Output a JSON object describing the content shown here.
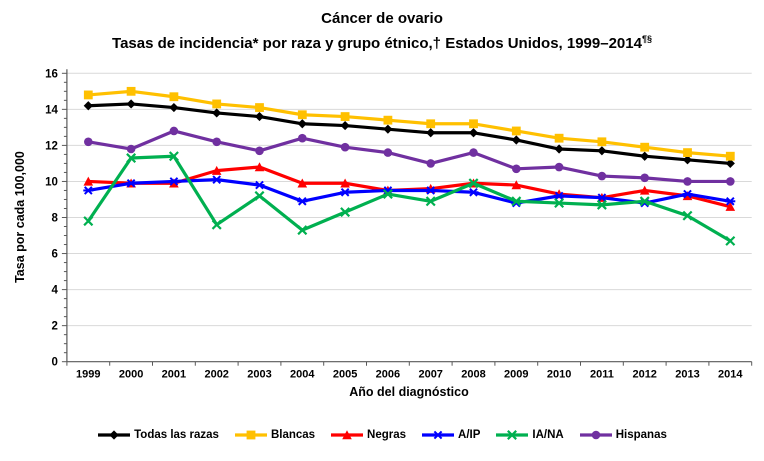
{
  "title": {
    "line1": "Cáncer de ovario",
    "line2": "Tasas de incidencia* por raza y grupo étnico,† Estados Unidos, 1999–2014",
    "line2_superscript": "¶§"
  },
  "chart_data": {
    "type": "line",
    "title": "Cáncer de ovario — Tasas de incidencia por raza y grupo étnico, Estados Unidos, 1999–2014",
    "xlabel": "Año del diagnóstico",
    "ylabel": "Tasa por cada 100,000",
    "ylim": [
      0,
      16
    ],
    "ytick_interval": 2,
    "grid": true,
    "legend_position": "bottom",
    "categories": [
      "1999",
      "2000",
      "2001",
      "2002",
      "2003",
      "2004",
      "2005",
      "2006",
      "2007",
      "2008",
      "2009",
      "2010",
      "2011",
      "2012",
      "2013",
      "2014"
    ],
    "series": [
      {
        "name": "Todas las razas",
        "color": "#000000",
        "marker": "diamond",
        "values": [
          14.2,
          14.3,
          14.1,
          13.8,
          13.6,
          13.2,
          13.1,
          12.9,
          12.7,
          12.7,
          12.3,
          11.8,
          11.7,
          11.4,
          11.2,
          11.0
        ]
      },
      {
        "name": "Blancas",
        "color": "#FFC000",
        "marker": "square",
        "values": [
          14.8,
          15.0,
          14.7,
          14.3,
          14.1,
          13.7,
          13.6,
          13.4,
          13.2,
          13.2,
          12.8,
          12.4,
          12.2,
          11.9,
          11.6,
          11.4
        ]
      },
      {
        "name": "Negras",
        "color": "#FF0000",
        "marker": "triangle",
        "values": [
          10.0,
          9.9,
          9.9,
          10.6,
          10.8,
          9.9,
          9.9,
          9.5,
          9.6,
          9.9,
          9.8,
          9.3,
          9.1,
          9.5,
          9.2,
          8.6
        ]
      },
      {
        "name": "A/IP",
        "color": "#0000FF",
        "marker": "asterisk",
        "values": [
          9.5,
          9.9,
          10.0,
          10.1,
          9.8,
          8.9,
          9.4,
          9.5,
          9.5,
          9.4,
          8.8,
          9.2,
          9.1,
          8.8,
          9.3,
          8.9
        ]
      },
      {
        "name": "IA/NA",
        "color": "#00B050",
        "marker": "x",
        "values": [
          7.8,
          11.3,
          11.4,
          7.6,
          9.2,
          7.3,
          8.3,
          9.3,
          8.9,
          9.9,
          8.9,
          8.8,
          8.7,
          8.9,
          8.1,
          6.7
        ]
      },
      {
        "name": "Hispanas",
        "color": "#7030A0",
        "marker": "circle",
        "values": [
          12.2,
          11.8,
          12.8,
          12.2,
          11.7,
          12.4,
          11.9,
          11.6,
          11.0,
          11.6,
          10.7,
          10.8,
          10.3,
          10.2,
          10.0,
          10.0
        ]
      }
    ],
    "colors": {
      "axis": "#595959",
      "grid": "#D9D9D9",
      "text": "#000000"
    }
  }
}
